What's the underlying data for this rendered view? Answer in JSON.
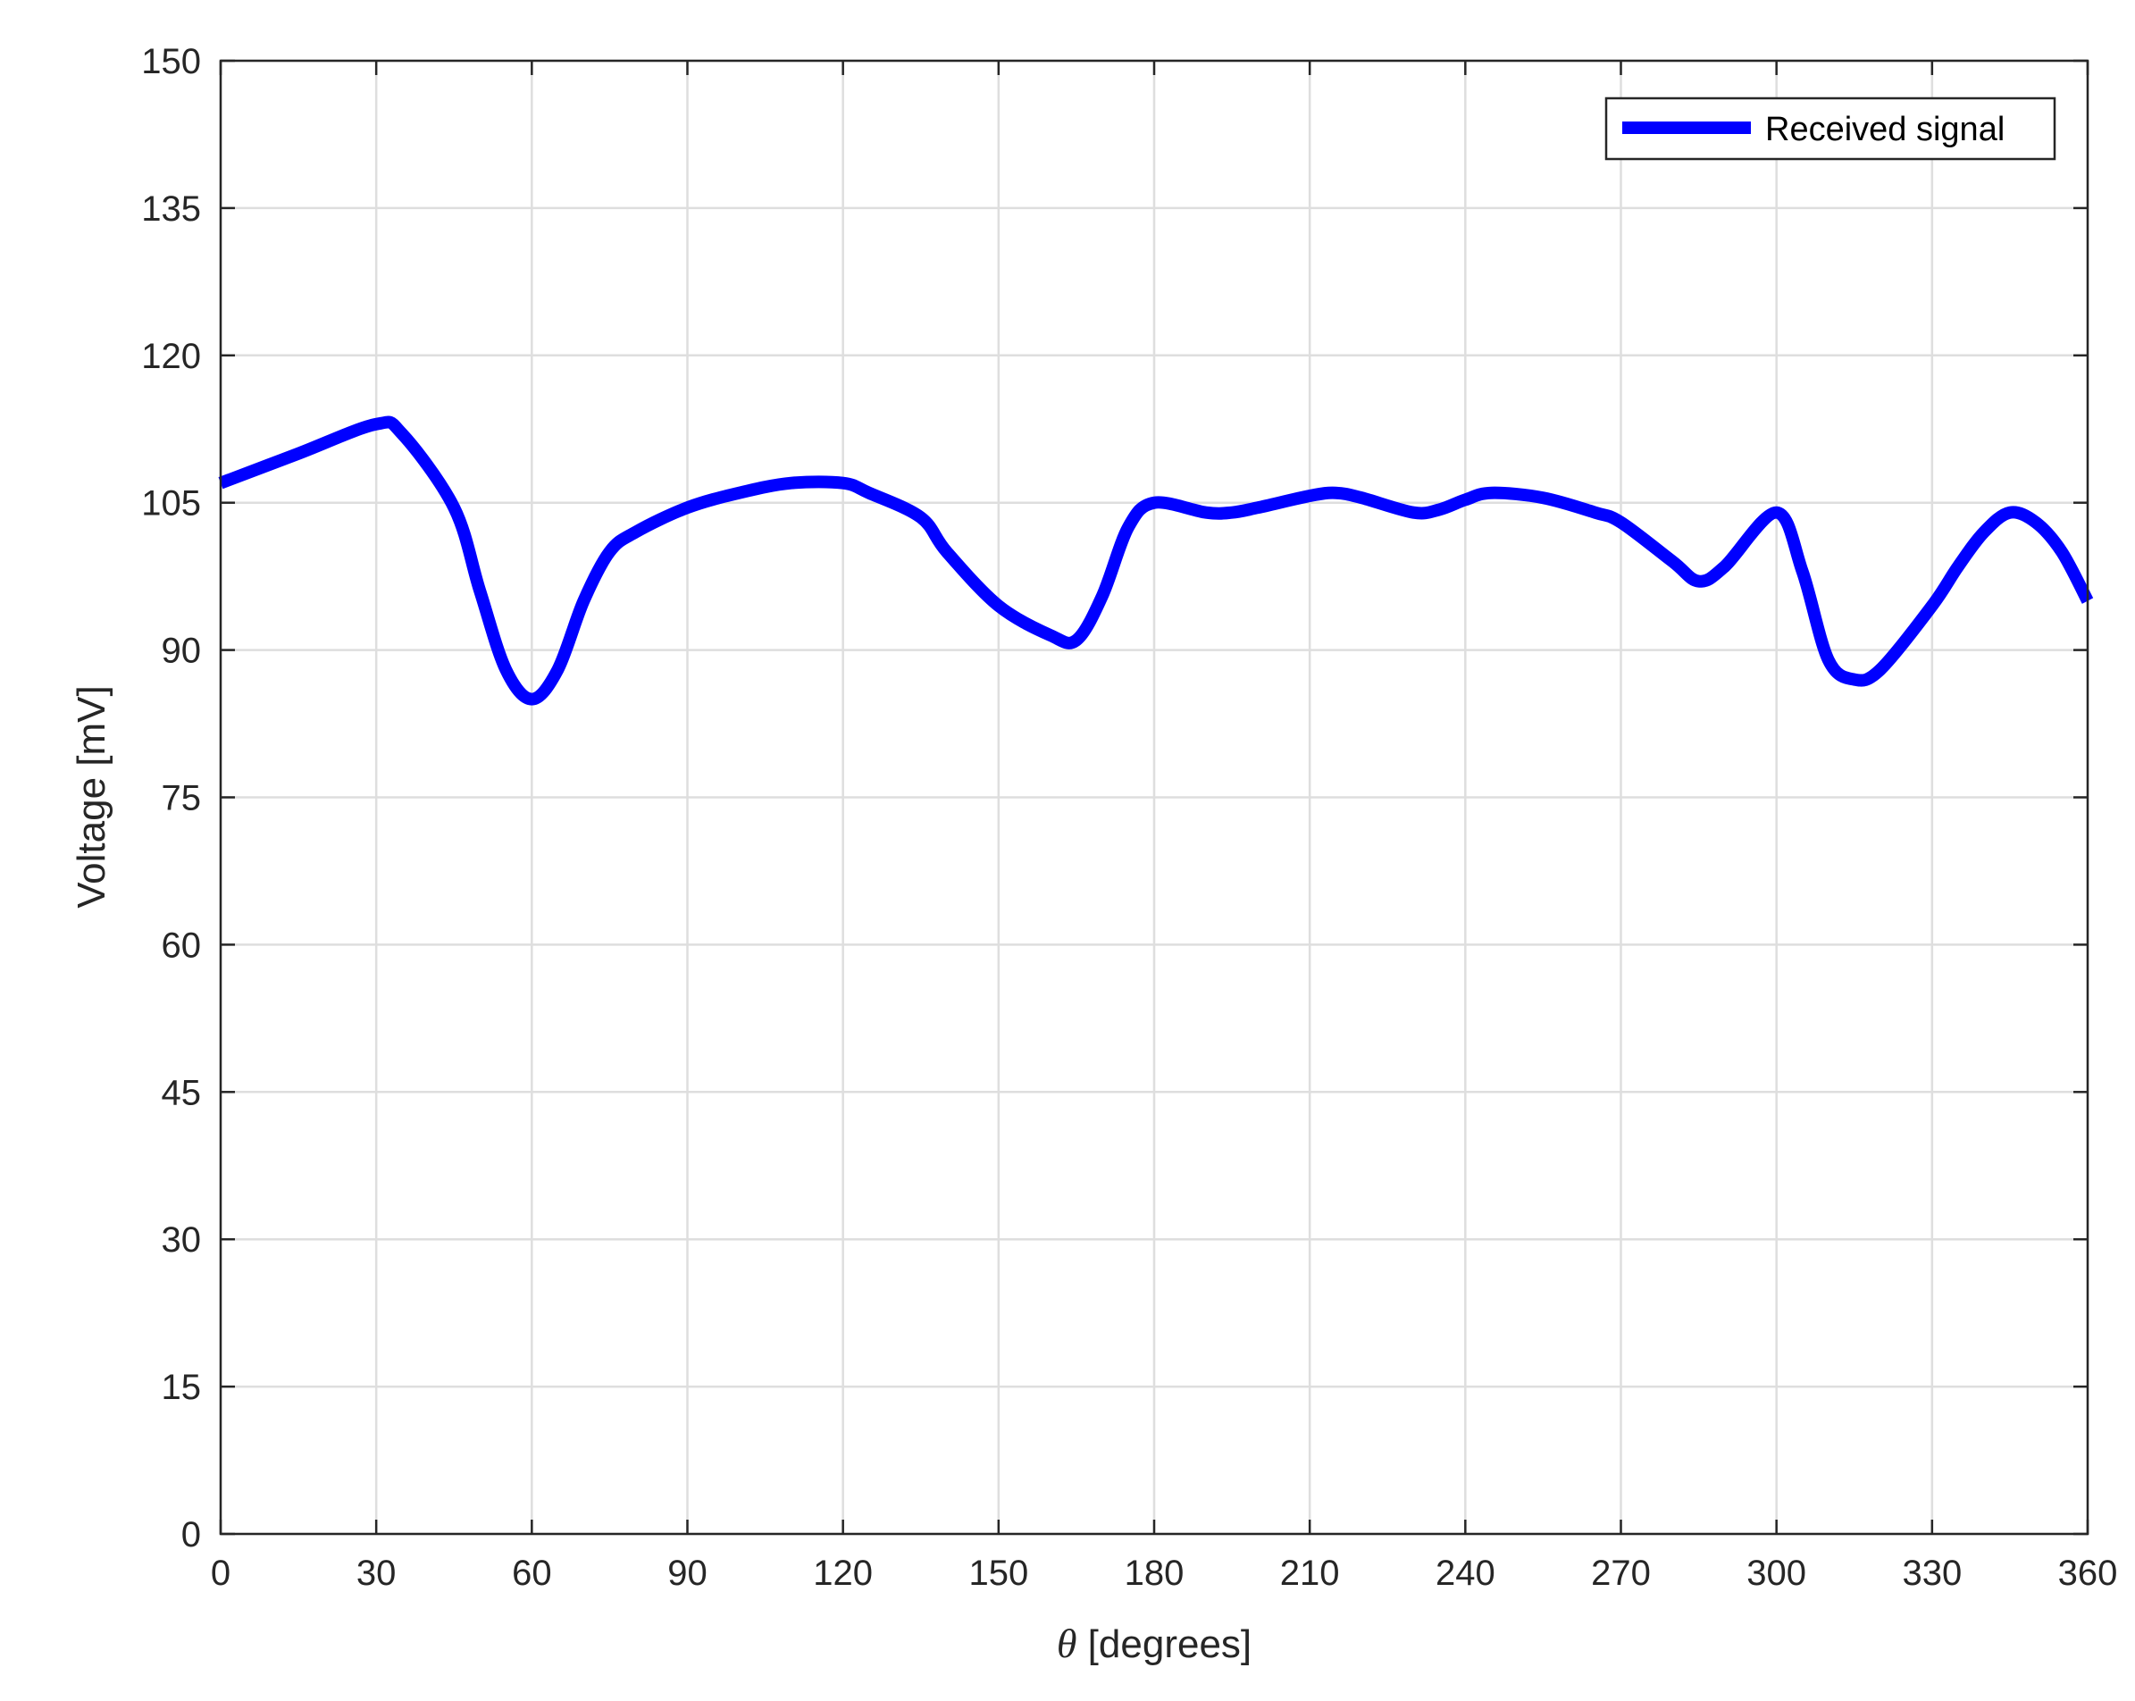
{
  "chart_data": {
    "type": "line",
    "xlabel_symbol": "θ",
    "xlabel_unit": " [degrees]",
    "ylabel": "Voltage [mV]",
    "xlim": [
      0,
      360
    ],
    "ylim": [
      0,
      150
    ],
    "xticks": [
      0,
      30,
      60,
      90,
      120,
      150,
      180,
      210,
      240,
      270,
      300,
      330,
      360
    ],
    "yticks": [
      0,
      15,
      30,
      45,
      60,
      75,
      90,
      105,
      120,
      135,
      150
    ],
    "grid": true,
    "legend_position": "top-right",
    "series": [
      {
        "name": "Received signal",
        "color": "#0000ff",
        "x": [
          0,
          15,
          30,
          35,
          45,
          50,
          55,
          60,
          65,
          70,
          75,
          80,
          90,
          100,
          110,
          120,
          125,
          135,
          140,
          150,
          160,
          165,
          170,
          175,
          180,
          190,
          195,
          200,
          210,
          215,
          220,
          230,
          235,
          240,
          245,
          255,
          265,
          270,
          280,
          285,
          290,
          300,
          305,
          310,
          315,
          320,
          330,
          335,
          340,
          345,
          350,
          355,
          360
        ],
        "y": [
          107,
          110,
          113,
          112,
          104.5,
          96,
          88,
          85,
          88,
          95,
          100,
          102,
          104.5,
          106,
          107,
          107,
          106,
          103.5,
          100,
          94.5,
          91.5,
          91,
          95.5,
          102.5,
          105,
          104,
          104,
          104.5,
          105.7,
          106,
          105.5,
          104,
          104.3,
          105.3,
          106,
          105.5,
          104,
          103,
          99,
          97,
          98.5,
          104,
          98,
          89,
          87,
          88,
          94.5,
          98.5,
          102,
          104,
          103,
          100,
          95
        ]
      }
    ]
  }
}
